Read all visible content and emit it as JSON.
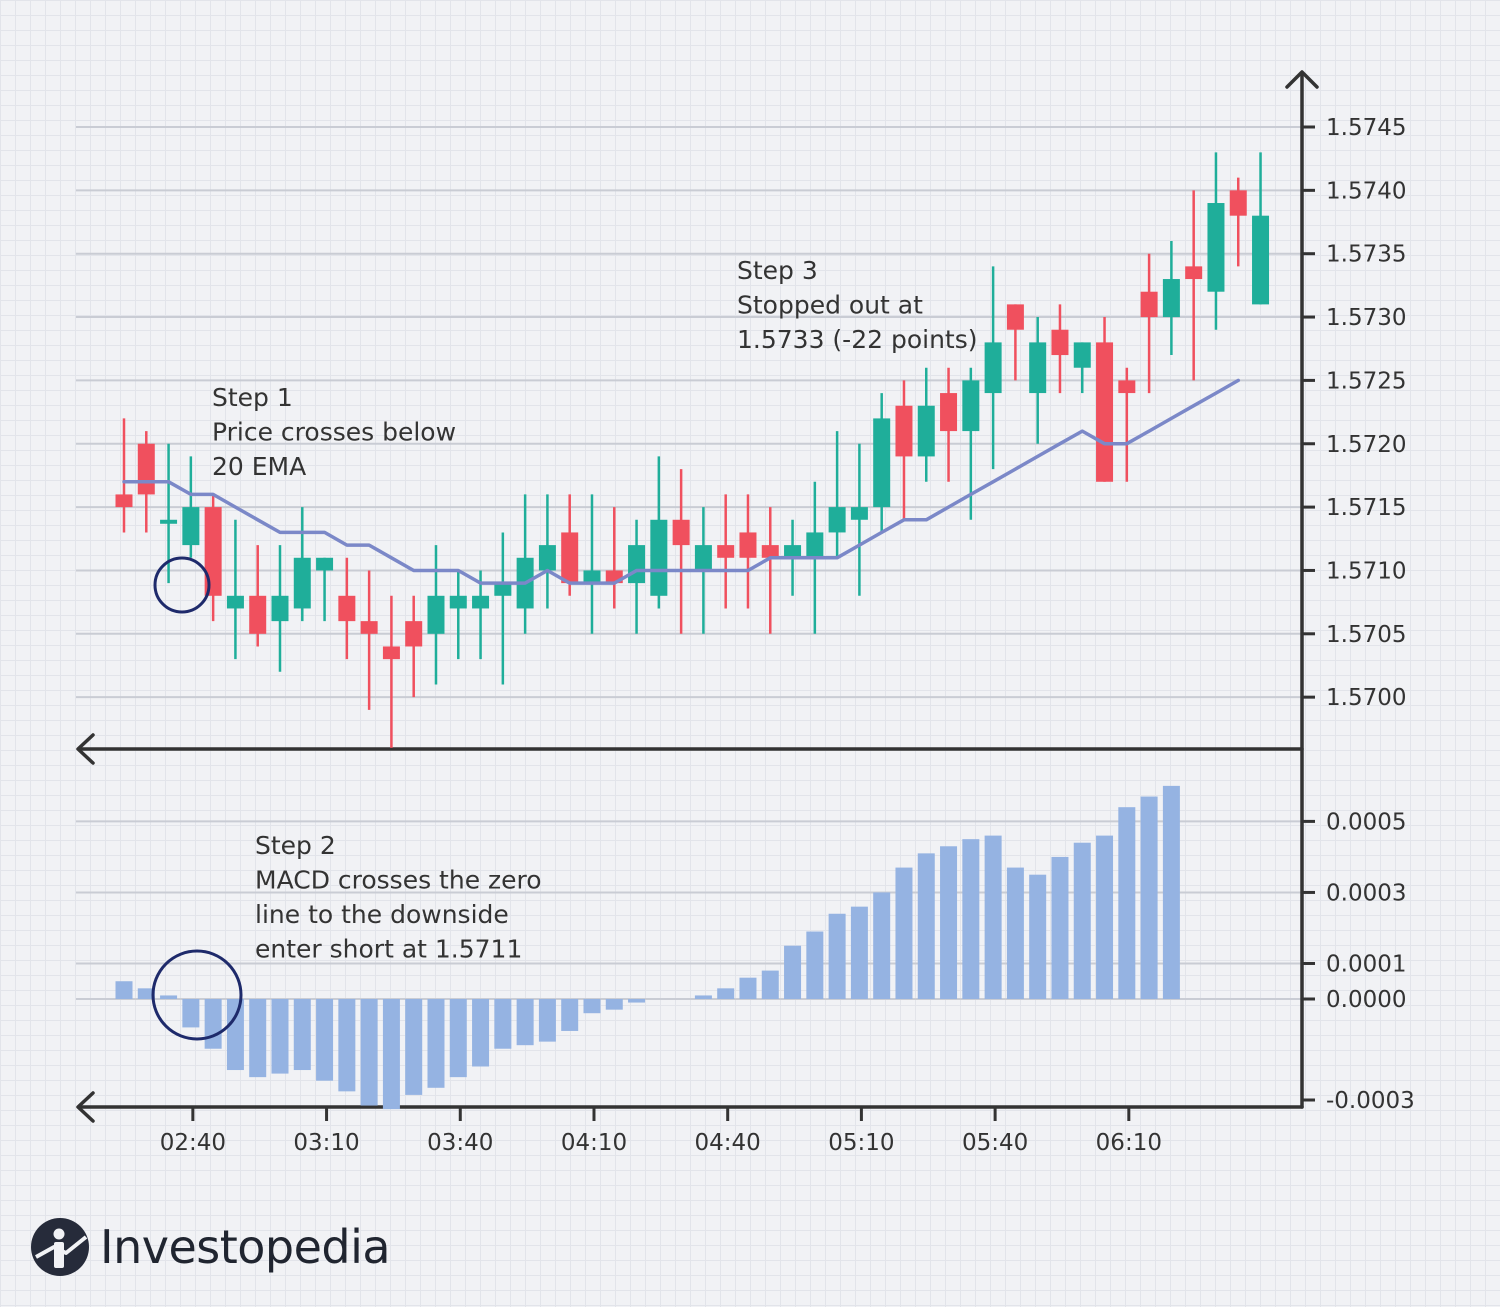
{
  "brand": {
    "name": "Investopedia",
    "logo_icon": "investopedia-logo-icon"
  },
  "colors": {
    "up": "#1fae9a",
    "down": "#f0505e",
    "ema": "#7b88c8",
    "macd": "#95b3e2",
    "circle": "#1e2a6b",
    "axis": "#333333"
  },
  "chart_data": [
    {
      "type": "candlestick",
      "title": "",
      "ylim": [
        1.5696,
        1.5748
      ],
      "yticks": [
        "1.5745",
        "1.5740",
        "1.5735",
        "1.5730",
        "1.5725",
        "1.5720",
        "1.5715",
        "1.5710",
        "1.5705",
        "1.5700"
      ],
      "ytick_values": [
        1.5745,
        1.574,
        1.5735,
        1.573,
        1.5725,
        1.572,
        1.5715,
        1.571,
        1.5705,
        1.57
      ],
      "x_start_minutes": 145,
      "x_step_minutes": 5,
      "candles": [
        {
          "o": 1.5716,
          "h": 1.5722,
          "l": 1.5713,
          "c": 1.5715
        },
        {
          "o": 1.572,
          "h": 1.5721,
          "l": 1.5713,
          "c": 1.5716
        },
        {
          "o": 1.5714,
          "h": 1.572,
          "l": 1.5709,
          "c": 1.5714
        },
        {
          "o": 1.5712,
          "h": 1.5719,
          "l": 1.5711,
          "c": 1.5715
        },
        {
          "o": 1.5715,
          "h": 1.5716,
          "l": 1.5706,
          "c": 1.5708
        },
        {
          "o": 1.5707,
          "h": 1.5714,
          "l": 1.5703,
          "c": 1.5708
        },
        {
          "o": 1.5708,
          "h": 1.5712,
          "l": 1.5704,
          "c": 1.5705
        },
        {
          "o": 1.5706,
          "h": 1.5712,
          "l": 1.5702,
          "c": 1.5708
        },
        {
          "o": 1.5707,
          "h": 1.5715,
          "l": 1.5706,
          "c": 1.5711
        },
        {
          "o": 1.571,
          "h": 1.5711,
          "l": 1.5706,
          "c": 1.5711
        },
        {
          "o": 1.5708,
          "h": 1.5711,
          "l": 1.5703,
          "c": 1.5706
        },
        {
          "o": 1.5706,
          "h": 1.571,
          "l": 1.5699,
          "c": 1.5705
        },
        {
          "o": 1.5704,
          "h": 1.5708,
          "l": 1.5696,
          "c": 1.5703
        },
        {
          "o": 1.5706,
          "h": 1.5708,
          "l": 1.57,
          "c": 1.5704
        },
        {
          "o": 1.5705,
          "h": 1.5712,
          "l": 1.5701,
          "c": 1.5708
        },
        {
          "o": 1.5707,
          "h": 1.571,
          "l": 1.5703,
          "c": 1.5708
        },
        {
          "o": 1.5707,
          "h": 1.571,
          "l": 1.5703,
          "c": 1.5708
        },
        {
          "o": 1.5708,
          "h": 1.5713,
          "l": 1.5701,
          "c": 1.5709
        },
        {
          "o": 1.5707,
          "h": 1.5716,
          "l": 1.5705,
          "c": 1.5711
        },
        {
          "o": 1.571,
          "h": 1.5716,
          "l": 1.5707,
          "c": 1.5712
        },
        {
          "o": 1.5713,
          "h": 1.5716,
          "l": 1.5708,
          "c": 1.5709
        },
        {
          "o": 1.5709,
          "h": 1.5716,
          "l": 1.5705,
          "c": 1.571
        },
        {
          "o": 1.571,
          "h": 1.5715,
          "l": 1.5707,
          "c": 1.5709
        },
        {
          "o": 1.5709,
          "h": 1.5714,
          "l": 1.5705,
          "c": 1.5712
        },
        {
          "o": 1.5708,
          "h": 1.5719,
          "l": 1.5707,
          "c": 1.5714
        },
        {
          "o": 1.5714,
          "h": 1.5718,
          "l": 1.5705,
          "c": 1.5712
        },
        {
          "o": 1.571,
          "h": 1.5715,
          "l": 1.5705,
          "c": 1.5712
        },
        {
          "o": 1.5712,
          "h": 1.5716,
          "l": 1.5707,
          "c": 1.5711
        },
        {
          "o": 1.5713,
          "h": 1.5716,
          "l": 1.5707,
          "c": 1.5711
        },
        {
          "o": 1.5712,
          "h": 1.5715,
          "l": 1.5705,
          "c": 1.5711
        },
        {
          "o": 1.5711,
          "h": 1.5714,
          "l": 1.5708,
          "c": 1.5712
        },
        {
          "o": 1.5711,
          "h": 1.5717,
          "l": 1.5705,
          "c": 1.5713
        },
        {
          "o": 1.5713,
          "h": 1.5721,
          "l": 1.5711,
          "c": 1.5715
        },
        {
          "o": 1.5714,
          "h": 1.572,
          "l": 1.5708,
          "c": 1.5715
        },
        {
          "o": 1.5715,
          "h": 1.5724,
          "l": 1.5713,
          "c": 1.5722
        },
        {
          "o": 1.5723,
          "h": 1.5725,
          "l": 1.5714,
          "c": 1.5719
        },
        {
          "o": 1.5719,
          "h": 1.5726,
          "l": 1.5717,
          "c": 1.5723
        },
        {
          "o": 1.5724,
          "h": 1.5726,
          "l": 1.5717,
          "c": 1.5721
        },
        {
          "o": 1.5721,
          "h": 1.5726,
          "l": 1.5714,
          "c": 1.5725
        },
        {
          "o": 1.5724,
          "h": 1.5734,
          "l": 1.5718,
          "c": 1.5728
        },
        {
          "o": 1.5731,
          "h": 1.5731,
          "l": 1.5725,
          "c": 1.5729
        },
        {
          "o": 1.5724,
          "h": 1.573,
          "l": 1.572,
          "c": 1.5728
        },
        {
          "o": 1.5729,
          "h": 1.5731,
          "l": 1.5724,
          "c": 1.5727
        },
        {
          "o": 1.5726,
          "h": 1.5728,
          "l": 1.5724,
          "c": 1.5728
        },
        {
          "o": 1.5728,
          "h": 1.573,
          "l": 1.5717,
          "c": 1.5717
        },
        {
          "o": 1.5725,
          "h": 1.5726,
          "l": 1.5717,
          "c": 1.5724
        },
        {
          "o": 1.5732,
          "h": 1.5735,
          "l": 1.5724,
          "c": 1.573
        },
        {
          "o": 1.573,
          "h": 1.5736,
          "l": 1.5727,
          "c": 1.5733
        },
        {
          "o": 1.5734,
          "h": 1.574,
          "l": 1.5725,
          "c": 1.5733
        },
        {
          "o": 1.5732,
          "h": 1.5743,
          "l": 1.5729,
          "c": 1.5739
        },
        {
          "o": 1.574,
          "h": 1.5741,
          "l": 1.5734,
          "c": 1.5738
        },
        {
          "o": 1.5731,
          "h": 1.5743,
          "l": 1.5731,
          "c": 1.5738
        }
      ],
      "ema_20": [
        [
          145,
          1.5717
        ],
        [
          150,
          1.5717
        ],
        [
          155,
          1.5717
        ],
        [
          160,
          1.5716
        ],
        [
          165,
          1.5716
        ],
        [
          170,
          1.5715
        ],
        [
          175,
          1.5714
        ],
        [
          180,
          1.5713
        ],
        [
          185,
          1.5713
        ],
        [
          190,
          1.5713
        ],
        [
          195,
          1.5712
        ],
        [
          200,
          1.5712
        ],
        [
          205,
          1.5711
        ],
        [
          210,
          1.571
        ],
        [
          215,
          1.571
        ],
        [
          220,
          1.571
        ],
        [
          225,
          1.5709
        ],
        [
          230,
          1.5709
        ],
        [
          235,
          1.5709
        ],
        [
          240,
          1.571
        ],
        [
          245,
          1.5709
        ],
        [
          250,
          1.5709
        ],
        [
          255,
          1.5709
        ],
        [
          260,
          1.571
        ],
        [
          265,
          1.571
        ],
        [
          270,
          1.571
        ],
        [
          275,
          1.571
        ],
        [
          280,
          1.571
        ],
        [
          285,
          1.571
        ],
        [
          290,
          1.5711
        ],
        [
          295,
          1.5711
        ],
        [
          300,
          1.5711
        ],
        [
          305,
          1.5711
        ],
        [
          310,
          1.5712
        ],
        [
          315,
          1.5713
        ],
        [
          320,
          1.5714
        ],
        [
          325,
          1.5714
        ],
        [
          330,
          1.5715
        ],
        [
          335,
          1.5716
        ],
        [
          340,
          1.5717
        ],
        [
          345,
          1.5718
        ],
        [
          350,
          1.5719
        ],
        [
          355,
          1.572
        ],
        [
          360,
          1.5721
        ],
        [
          365,
          1.572
        ],
        [
          370,
          1.572
        ],
        [
          375,
          1.5721
        ],
        [
          380,
          1.5722
        ],
        [
          385,
          1.5723
        ],
        [
          390,
          1.5724
        ],
        [
          395,
          1.5725
        ]
      ],
      "annotations": [
        {
          "lines": [
            "Step 1",
            "Price crosses below",
            "20 EMA"
          ]
        },
        {
          "lines": [
            "Step 3",
            "Stopped out at",
            "1.5733 (-22 points)"
          ]
        }
      ]
    },
    {
      "type": "bar",
      "title": "",
      "ylim": [
        -0.000315,
        0.00064
      ],
      "yticks": [
        "0.0005",
        "0.0003",
        "0.0001",
        "0.0000",
        "-0.0003"
      ],
      "ytick_values": [
        0.0005,
        0.0003,
        0.0001,
        0,
        -0.0003
      ],
      "xticks": [
        "02:40",
        "03:10",
        "03:40",
        "04:10",
        "04:40",
        "05:10",
        "05:40",
        "06:10"
      ],
      "xtick_minutes": [
        160,
        190,
        220,
        250,
        280,
        310,
        340,
        370
      ],
      "x_start_minutes": 145,
      "x_step_minutes": 5,
      "macd": [
        5e-05,
        3e-05,
        1e-05,
        -8e-05,
        -0.00014,
        -0.0002,
        -0.00022,
        -0.00021,
        -0.0002,
        -0.00023,
        -0.00026,
        -0.0003,
        -0.00031,
        -0.00027,
        -0.00025,
        -0.00022,
        -0.00019,
        -0.00014,
        -0.00013,
        -0.00012,
        -9e-05,
        -4e-05,
        -3e-05,
        -1e-05,
        null,
        null,
        1e-05,
        3e-05,
        6e-05,
        8e-05,
        0.00015,
        0.00019,
        0.00024,
        0.00026,
        0.0003,
        0.00037,
        0.00041,
        0.00043,
        0.00045,
        0.00046,
        0.00037,
        0.00035,
        0.0004,
        0.00044,
        0.00046,
        0.00054,
        0.00057,
        0.0006
      ],
      "annotations": [
        {
          "lines": [
            "Step 2",
            "MACD crosses the zero",
            "line to the downside",
            "enter short at 1.5711"
          ]
        }
      ]
    }
  ]
}
